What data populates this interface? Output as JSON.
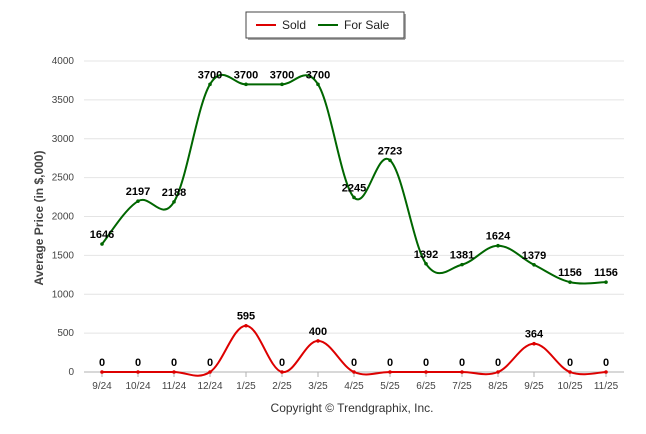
{
  "chart_data": {
    "type": "line",
    "ylabel": "Average Price (in $,000)",
    "xlabel": "",
    "credit": "Copyright © Trendgraphix, Inc.",
    "ylim": [
      0,
      4000
    ],
    "yticks": [
      0,
      500,
      1000,
      1500,
      2000,
      2500,
      3000,
      3500,
      4000
    ],
    "grid": true,
    "legend_position": "top-center",
    "categories": [
      "9/24",
      "10/24",
      "11/24",
      "12/24",
      "1/25",
      "2/25",
      "3/25",
      "4/25",
      "5/25",
      "6/25",
      "7/25",
      "8/25",
      "9/25",
      "10/25",
      "11/25"
    ],
    "series": [
      {
        "name": "Sold",
        "color": "#dd0000",
        "values": [
          0,
          0,
          0,
          0,
          595,
          0,
          400,
          0,
          0,
          0,
          0,
          0,
          364,
          0,
          0
        ]
      },
      {
        "name": "For Sale",
        "color": "#006600",
        "values": [
          1646,
          2197,
          2188,
          3700,
          3700,
          3700,
          3700,
          2245,
          2723,
          1392,
          1381,
          1624,
          1379,
          1156,
          1156
        ]
      }
    ]
  }
}
